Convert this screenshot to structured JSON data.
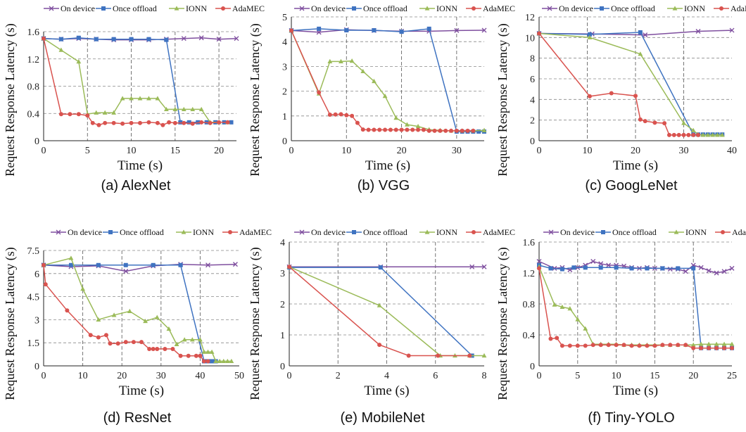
{
  "legend": [
    {
      "name": "On device",
      "color": "#7F4F9F",
      "marker": "x"
    },
    {
      "name": "Once offload",
      "color": "#3F73C1",
      "marker": "square"
    },
    {
      "name": "IONN",
      "color": "#9BBB59",
      "marker": "triangle"
    },
    {
      "name": "AdaMEC",
      "color": "#D9534F",
      "marker": "circle"
    }
  ],
  "chart_data": [
    {
      "type": "line",
      "caption": "(a) AlexNet",
      "xlabel": "Time (s)",
      "ylabel": "Request Response Latency (s)",
      "xlim": [
        0,
        22
      ],
      "ylim": [
        0,
        1.6
      ],
      "xticks": [
        0,
        5,
        10,
        15,
        20
      ],
      "yticks": [
        0,
        0.4,
        0.8,
        1.2,
        1.6
      ],
      "ytick_labels": [
        "0",
        "0.4",
        "0.8",
        "1.2",
        "1.6"
      ],
      "vgrid": [
        5,
        10,
        15,
        20
      ],
      "series": [
        {
          "name": "On device",
          "x": [
            0,
            2,
            4,
            6,
            8,
            10,
            12,
            14,
            16,
            18,
            20,
            22
          ],
          "y": [
            1.5,
            1.49,
            1.5,
            1.49,
            1.48,
            1.48,
            1.48,
            1.49,
            1.5,
            1.51,
            1.49,
            1.5
          ]
        },
        {
          "name": "Once offload",
          "x": [
            0,
            2,
            4,
            6,
            8,
            10,
            12,
            14,
            15.6,
            16.6,
            17.6,
            18.6,
            19.6,
            20.6,
            21.4
          ],
          "y": [
            1.5,
            1.49,
            1.51,
            1.49,
            1.49,
            1.49,
            1.49,
            1.48,
            0.27,
            0.27,
            0.27,
            0.27,
            0.27,
            0.27,
            0.27
          ]
        },
        {
          "name": "IONN",
          "x": [
            0,
            2,
            4,
            5,
            6,
            7,
            8,
            9,
            10,
            11,
            12,
            13,
            14,
            15,
            16,
            17,
            18,
            19,
            20,
            21
          ],
          "y": [
            1.5,
            1.33,
            1.16,
            0.39,
            0.41,
            0.41,
            0.41,
            0.62,
            0.62,
            0.62,
            0.62,
            0.62,
            0.46,
            0.46,
            0.46,
            0.46,
            0.46,
            0.27,
            0.27,
            0.27
          ]
        },
        {
          "name": "AdaMEC",
          "x": [
            0,
            2,
            3,
            4,
            5,
            5.6,
            6.3,
            7,
            8,
            9,
            10,
            11,
            12,
            13,
            13.6,
            14.3,
            15,
            16,
            17,
            18,
            19,
            20,
            21
          ],
          "y": [
            1.5,
            0.39,
            0.39,
            0.39,
            0.37,
            0.26,
            0.23,
            0.26,
            0.26,
            0.25,
            0.26,
            0.26,
            0.27,
            0.26,
            0.23,
            0.27,
            0.26,
            0.26,
            0.25,
            0.27,
            0.26,
            0.27,
            0.27
          ]
        }
      ]
    },
    {
      "type": "line",
      "caption": "(b) VGG",
      "xlabel": "Time (s)",
      "ylabel": "Request Response Latency (s)",
      "xlim": [
        0,
        35
      ],
      "ylim": [
        0,
        5
      ],
      "xticks": [
        0,
        10,
        20,
        30
      ],
      "yticks": [
        0,
        1,
        2,
        3,
        4,
        5
      ],
      "ytick_labels": [
        "0",
        "1",
        "2",
        "3",
        "4",
        "5"
      ],
      "vgrid": [
        10,
        20,
        30
      ],
      "series": [
        {
          "name": "On device",
          "x": [
            0,
            5,
            10,
            15,
            20,
            25,
            30,
            35
          ],
          "y": [
            4.45,
            4.38,
            4.48,
            4.45,
            4.42,
            4.42,
            4.45,
            4.46
          ]
        },
        {
          "name": "Once offload",
          "x": [
            0,
            5,
            10,
            15,
            20,
            25,
            30,
            31,
            32,
            33,
            34,
            35
          ],
          "y": [
            4.45,
            4.52,
            4.46,
            4.46,
            4.4,
            4.52,
            0.37,
            0.37,
            0.37,
            0.37,
            0.37,
            0.37
          ]
        },
        {
          "name": "IONN",
          "x": [
            0,
            5,
            7,
            9,
            11,
            13,
            15,
            17,
            19,
            21,
            23,
            25,
            27,
            29,
            31,
            33,
            35
          ],
          "y": [
            4.45,
            1.9,
            3.2,
            3.2,
            3.22,
            2.8,
            2.4,
            1.8,
            0.92,
            0.65,
            0.58,
            0.45,
            0.42,
            0.4,
            0.4,
            0.4,
            0.42
          ]
        },
        {
          "name": "AdaMEC",
          "x": [
            0,
            5,
            7,
            8,
            9,
            10,
            11,
            12,
            13,
            14,
            15,
            16,
            17,
            18,
            19,
            20,
            21,
            22,
            23,
            24,
            25,
            26,
            27,
            28,
            29,
            30,
            31,
            32,
            33
          ],
          "y": [
            4.45,
            1.95,
            1.05,
            1.06,
            1.07,
            1.03,
            1.0,
            0.72,
            0.45,
            0.44,
            0.44,
            0.44,
            0.44,
            0.44,
            0.44,
            0.44,
            0.44,
            0.44,
            0.44,
            0.44,
            0.4,
            0.4,
            0.4,
            0.4,
            0.4,
            0.4,
            0.4,
            0.4,
            0.4
          ]
        }
      ]
    },
    {
      "type": "line",
      "caption": "(c) GoogLeNet",
      "xlabel": "Time (s)",
      "ylabel": "Request Response Latency (s)",
      "xlim": [
        0,
        40
      ],
      "ylim": [
        0,
        12
      ],
      "xticks": [
        0,
        10,
        20,
        30,
        40
      ],
      "yticks": [
        0,
        2,
        4,
        6,
        8,
        10,
        12
      ],
      "ytick_labels": [
        "0",
        "2",
        "4",
        "6",
        "8",
        "10",
        "12"
      ],
      "vgrid": [
        10,
        20,
        30
      ],
      "series": [
        {
          "name": "On device",
          "x": [
            0,
            11,
            22,
            33,
            40
          ],
          "y": [
            10.4,
            10.35,
            10.25,
            10.6,
            10.7
          ]
        },
        {
          "name": "Once offload",
          "x": [
            0,
            10.5,
            21,
            32,
            33,
            34,
            35,
            36,
            37,
            38
          ],
          "y": [
            10.4,
            10.3,
            10.5,
            0.6,
            0.6,
            0.6,
            0.6,
            0.6,
            0.6,
            0.6
          ]
        },
        {
          "name": "IONN",
          "x": [
            0,
            10.5,
            21,
            30,
            32,
            33,
            34,
            35,
            36,
            37,
            38
          ],
          "y": [
            10.4,
            10.0,
            8.4,
            1.7,
            1.0,
            0.6,
            0.55,
            0.55,
            0.55,
            0.55,
            0.55
          ]
        },
        {
          "name": "AdaMEC",
          "x": [
            0,
            10.5,
            15,
            20,
            21,
            22,
            24,
            26,
            27,
            28,
            29,
            30,
            31,
            32,
            33
          ],
          "y": [
            10.4,
            4.3,
            4.6,
            4.35,
            2.05,
            1.9,
            1.75,
            1.7,
            0.55,
            0.55,
            0.55,
            0.55,
            0.55,
            0.55,
            0.55
          ]
        }
      ]
    },
    {
      "type": "line",
      "caption": "(d) ResNet",
      "xlabel": "Time (s)",
      "ylabel": "Request Response Latency (s)",
      "xlim": [
        0,
        50
      ],
      "ylim": [
        0,
        7.5
      ],
      "xticks": [
        0,
        10,
        20,
        30,
        40,
        50
      ],
      "yticks": [
        0,
        1.5,
        3,
        4.5,
        6,
        7.5
      ],
      "ytick_labels": [
        "0",
        "1.5",
        "3",
        "4.5",
        "6",
        "7.5"
      ],
      "vgrid": [
        10,
        20,
        30,
        40
      ],
      "series": [
        {
          "name": "On device",
          "x": [
            0,
            7,
            14,
            21,
            28,
            35,
            42,
            49
          ],
          "y": [
            6.55,
            6.45,
            6.5,
            6.15,
            6.5,
            6.6,
            6.55,
            6.6
          ]
        },
        {
          "name": "Once offload",
          "x": [
            0,
            7,
            14,
            21,
            28,
            35,
            41,
            42,
            43,
            44
          ],
          "y": [
            6.55,
            6.55,
            6.55,
            6.55,
            6.55,
            6.55,
            0.3,
            0.3,
            0.3,
            0.3
          ]
        },
        {
          "name": "IONN",
          "x": [
            0,
            7,
            10,
            14,
            18,
            22,
            26,
            29,
            32,
            34,
            36,
            38,
            40,
            41,
            42,
            43,
            44,
            45,
            46,
            47,
            48
          ],
          "y": [
            6.55,
            7.0,
            5.0,
            3.0,
            3.3,
            3.55,
            2.9,
            3.15,
            2.4,
            1.4,
            1.7,
            1.7,
            1.7,
            0.9,
            0.9,
            0.9,
            0.3,
            0.3,
            0.3,
            0.3,
            0.3
          ]
        },
        {
          "name": "AdaMEC",
          "x": [
            0,
            0.5,
            6,
            12,
            14,
            16,
            17,
            19,
            21,
            23,
            25,
            27,
            28,
            29,
            31,
            33,
            35,
            37,
            39,
            40,
            41,
            42
          ],
          "y": [
            6.55,
            5.3,
            3.6,
            2.0,
            1.85,
            2.0,
            1.45,
            1.45,
            1.55,
            1.55,
            1.55,
            1.1,
            1.1,
            1.1,
            1.1,
            1.1,
            0.65,
            0.65,
            0.65,
            0.65,
            0.3,
            0.3
          ]
        }
      ]
    },
    {
      "type": "line",
      "caption": "(e) MobileNet",
      "xlabel": "Time (s)",
      "ylabel": "Request Response Latency (s)",
      "xlim": [
        0,
        8
      ],
      "ylim": [
        0,
        4
      ],
      "xticks": [
        0,
        2,
        4,
        6,
        8
      ],
      "yticks": [
        0,
        1,
        2,
        3,
        4
      ],
      "ytick_labels": [
        "0",
        "1",
        "2",
        "3",
        "4"
      ],
      "vgrid": [
        2,
        4,
        6
      ],
      "series": [
        {
          "name": "On device",
          "x": [
            0,
            3.75,
            7.5,
            8
          ],
          "y": [
            3.2,
            3.2,
            3.2,
            3.2
          ]
        },
        {
          "name": "Once offload",
          "x": [
            0,
            3.75,
            7.5
          ],
          "y": [
            3.18,
            3.18,
            0.33
          ]
        },
        {
          "name": "IONN",
          "x": [
            0,
            3.7,
            6.2,
            6.8,
            7.4,
            8
          ],
          "y": [
            3.2,
            1.95,
            0.33,
            0.33,
            0.33,
            0.33
          ]
        },
        {
          "name": "AdaMEC",
          "x": [
            0,
            3.7,
            4.9,
            6.1,
            7.4
          ],
          "y": [
            3.2,
            0.68,
            0.33,
            0.33,
            0.33
          ]
        }
      ]
    },
    {
      "type": "line",
      "caption": "(f) Tiny-YOLO",
      "xlabel": "Time (s)",
      "ylabel": "Request Response Latency (s)",
      "xlim": [
        0,
        25
      ],
      "ylim": [
        0,
        1.6
      ],
      "xticks": [
        0,
        5,
        10,
        15,
        20,
        25
      ],
      "yticks": [
        0,
        0.4,
        0.8,
        1.2,
        1.6
      ],
      "ytick_labels": [
        "0",
        "0.4",
        "0.8",
        "1.2",
        "1.6"
      ],
      "vgrid": [
        5,
        10,
        15,
        20
      ],
      "series": [
        {
          "name": "On device",
          "x": [
            0,
            2,
            3,
            4,
            5,
            6,
            7,
            8,
            9,
            10,
            11,
            12,
            13,
            14,
            15,
            16,
            17,
            18,
            19,
            20,
            21,
            22,
            23,
            24,
            25
          ],
          "y": [
            1.35,
            1.26,
            1.27,
            1.24,
            1.27,
            1.3,
            1.35,
            1.32,
            1.3,
            1.3,
            1.29,
            1.27,
            1.26,
            1.27,
            1.26,
            1.26,
            1.25,
            1.25,
            1.22,
            1.3,
            1.27,
            1.23,
            1.2,
            1.22,
            1.26
          ]
        },
        {
          "name": "Once offload",
          "x": [
            0,
            1.5,
            3,
            4.5,
            6,
            8,
            10,
            12,
            14,
            16,
            18,
            20,
            21,
            22,
            23,
            24,
            25
          ],
          "y": [
            1.3,
            1.26,
            1.25,
            1.27,
            1.27,
            1.27,
            1.27,
            1.26,
            1.26,
            1.26,
            1.26,
            1.26,
            0.23,
            0.23,
            0.23,
            0.23,
            0.23
          ]
        },
        {
          "name": "IONN",
          "x": [
            0,
            2,
            3,
            4,
            5,
            6,
            7,
            8,
            9,
            10,
            11,
            12,
            13,
            14,
            15,
            16,
            17,
            18,
            19,
            20,
            21,
            22,
            23,
            24,
            25
          ],
          "y": [
            1.28,
            0.79,
            0.76,
            0.74,
            0.6,
            0.48,
            0.28,
            0.28,
            0.28,
            0.28,
            0.27,
            0.27,
            0.27,
            0.27,
            0.27,
            0.27,
            0.27,
            0.27,
            0.27,
            0.27,
            0.28,
            0.28,
            0.28,
            0.28,
            0.28
          ]
        },
        {
          "name": "AdaMEC",
          "x": [
            0,
            1.5,
            2.3,
            3,
            4,
            5,
            6,
            7,
            8,
            9,
            10,
            11,
            12,
            13,
            14,
            15,
            16,
            17,
            18,
            19,
            20,
            21,
            22,
            23,
            24,
            25
          ],
          "y": [
            1.26,
            0.35,
            0.36,
            0.26,
            0.26,
            0.26,
            0.26,
            0.27,
            0.27,
            0.27,
            0.27,
            0.27,
            0.26,
            0.26,
            0.26,
            0.26,
            0.27,
            0.27,
            0.27,
            0.27,
            0.23,
            0.23,
            0.23,
            0.23,
            0.23,
            0.23
          ]
        }
      ]
    }
  ]
}
